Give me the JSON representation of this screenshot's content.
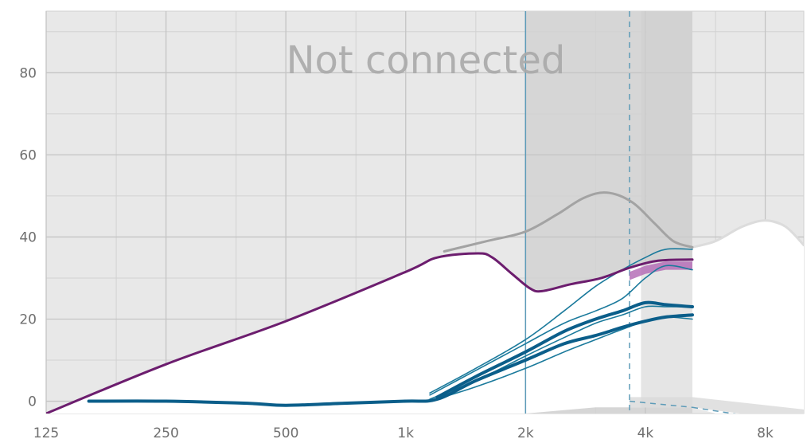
{
  "chart_data": {
    "type": "line",
    "title": "",
    "xlabel": "",
    "ylabel": "",
    "watermark": "Not connected",
    "x_scale": "log",
    "xlim": [
      125,
      10000
    ],
    "ylim": [
      -3,
      95
    ],
    "x_ticks": [
      {
        "value": 125,
        "label": "125"
      },
      {
        "value": 250,
        "label": "250"
      },
      {
        "value": 500,
        "label": "500"
      },
      {
        "value": 1000,
        "label": "1k"
      },
      {
        "value": 2000,
        "label": "2k"
      },
      {
        "value": 4000,
        "label": "4k"
      },
      {
        "value": 8000,
        "label": "8k"
      }
    ],
    "y_ticks": [
      {
        "value": 0,
        "label": "0"
      },
      {
        "value": 20,
        "label": "20"
      },
      {
        "value": 40,
        "label": "40"
      },
      {
        "value": 60,
        "label": "60"
      },
      {
        "value": 80,
        "label": "80"
      }
    ],
    "grid": true,
    "colors": {
      "background": "#e8e8e8",
      "band": "#d6d6d6",
      "grid": "#c4c4c4",
      "minor_grid": "#d2d2d2",
      "purple": "#6c1d6e",
      "purple_fill": "#b56fb7",
      "blue_dark": "#0b5e8a",
      "blue_thin": "#1b7a9c",
      "gray_curve": "#a3a3a3",
      "gray_curve_light": "#dcdcdc",
      "marker_line": "#5d9bb8",
      "white": "#ffffff"
    },
    "markers": [
      {
        "x": 2000,
        "style": "solid"
      },
      {
        "x": 3650,
        "style": "dashed"
      }
    ],
    "shaded_band": [
      2000,
      5250
    ],
    "white_region": {
      "top": [
        [
          125,
          -3
        ],
        [
          250,
          9
        ],
        [
          500,
          19.5
        ],
        [
          1000,
          31.5
        ],
        [
          1200,
          35
        ],
        [
          1520,
          36
        ],
        [
          1650,
          35
        ],
        [
          1850,
          31
        ],
        [
          2050,
          27.5
        ],
        [
          2200,
          26.8
        ],
        [
          2600,
          28.5
        ],
        [
          3100,
          30
        ],
        [
          3650,
          32.5
        ],
        [
          4300,
          34.2
        ],
        [
          5250,
          34.5
        ],
        [
          5250,
          37.5
        ],
        [
          6000,
          39
        ],
        [
          7000,
          42.5
        ],
        [
          8000,
          44
        ],
        [
          9000,
          42.5
        ],
        [
          10000,
          38
        ]
      ],
      "bottom_right": [
        [
          10000,
          -5
        ],
        [
          8000,
          -5
        ],
        [
          6000,
          -3
        ],
        [
          5250,
          -1.5
        ],
        [
          3650,
          -1.5
        ],
        [
          3000,
          -1.5
        ],
        [
          2000,
          -3
        ],
        [
          125,
          -3
        ]
      ]
    },
    "series": [
      {
        "name": "",
        "style": "purple",
        "x": [
          125,
          250,
          500,
          1000,
          1200,
          1520,
          1650,
          1850,
          2050,
          2200,
          2600,
          3100,
          3650,
          4300,
          5250
        ],
        "y": [
          -3,
          9,
          19.5,
          31.5,
          35,
          36,
          35,
          31,
          27.5,
          26.8,
          28.5,
          30,
          32.5,
          34.2,
          34.5
        ]
      },
      {
        "name": "",
        "style": "gray",
        "x": [
          1250,
          1600,
          2000,
          2400,
          2800,
          3200,
          3700,
          4200,
          4700,
          5250
        ],
        "y": [
          36.5,
          39,
          41.3,
          45.5,
          49.5,
          50.8,
          48.5,
          43.5,
          39,
          37.5
        ]
      },
      {
        "name": "",
        "style": "gray_light",
        "x": [
          5250,
          6000,
          7000,
          8000,
          9000,
          10000
        ],
        "y": [
          37.5,
          39,
          42.5,
          44,
          42.5,
          38
        ]
      },
      {
        "name": "",
        "style": "blue_thick",
        "x": [
          160,
          250,
          400,
          500,
          700,
          1000,
          1200,
          1500,
          2000,
          2500,
          3000,
          3500,
          4000,
          4500,
          5250
        ],
        "y": [
          0,
          0,
          -0.5,
          -1,
          -0.5,
          0,
          0.5,
          5,
          10,
          14,
          16,
          18,
          19.5,
          20.5,
          21
        ]
      },
      {
        "name": "",
        "style": "blue_thick",
        "x": [
          1200,
          1500,
          2000,
          2500,
          3000,
          3500,
          4000,
          4500,
          5250
        ],
        "y": [
          1,
          6,
          12,
          17,
          20,
          22,
          24,
          23.5,
          23
        ]
      },
      {
        "name": "",
        "style": "blue_thin",
        "x": [
          1150,
          1500,
          2000,
          2500,
          3000,
          3500,
          4000,
          4500,
          5250
        ],
        "y": [
          2,
          8,
          15,
          22,
          28,
          32,
          35,
          37,
          37
        ]
      },
      {
        "name": "",
        "style": "blue_thin",
        "x": [
          1150,
          1500,
          2000,
          2500,
          3000,
          3500,
          4000,
          4500,
          5250
        ],
        "y": [
          1.5,
          7.5,
          14,
          19,
          22,
          25,
          30,
          33,
          32
        ]
      },
      {
        "name": "",
        "style": "blue_thin",
        "x": [
          1150,
          1500,
          2000,
          2500,
          3000,
          3500,
          4000,
          4500,
          5250
        ],
        "y": [
          0.5,
          5,
          11,
          15.5,
          19,
          21,
          23,
          23,
          23
        ]
      },
      {
        "name": "",
        "style": "blue_thin",
        "x": [
          1150,
          1500,
          2000,
          2500,
          3000,
          3500,
          4000,
          4500,
          5250
        ],
        "y": [
          0,
          3.5,
          8,
          12,
          15,
          17.5,
          19.5,
          20.5,
          20
        ]
      }
    ],
    "purple_band": {
      "x": [
        3650,
        4000,
        4500,
        5250
      ],
      "y_top": [
        31.5,
        33,
        34,
        34
      ],
      "y_bottom": [
        29.5,
        31,
        32,
        32
      ]
    }
  }
}
